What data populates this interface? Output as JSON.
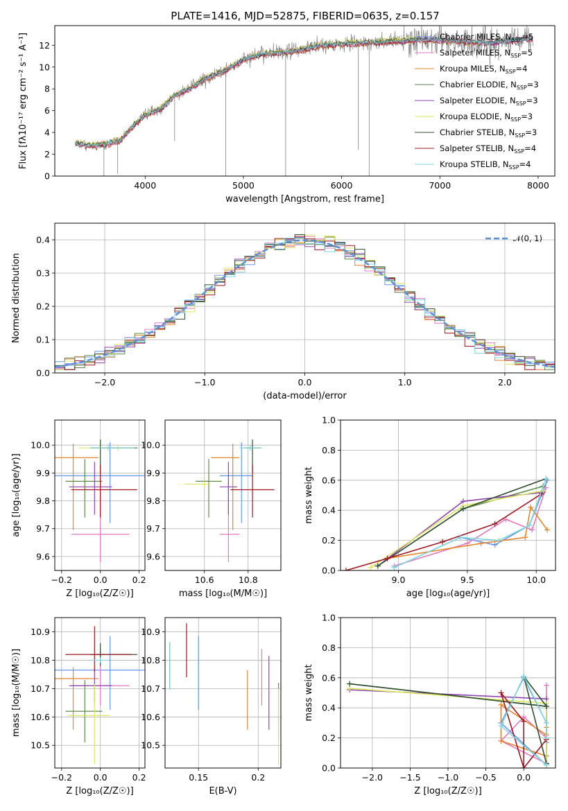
{
  "figure": {
    "title": "PLATE=1416, MJD=52875, FIBERID=0635, z=0.157"
  },
  "chart_data": [
    {
      "id": "spectrum",
      "type": "line",
      "xlabel": "wavelength [Angstrom, rest frame]",
      "ylabel": "Flux [fλ10⁻¹⁷ erg cm⁻² s⁻¹ A⁻¹]",
      "xlim": [
        3080,
        8170
      ],
      "ylim": [
        0,
        13.8
      ],
      "xticks": [
        4000,
        5000,
        6000,
        7000,
        8000
      ],
      "yticks": [
        0,
        2,
        4,
        6,
        8,
        10,
        12
      ],
      "grid": false,
      "legend_position": "top-right",
      "data_color": "#808080",
      "observed_envelope": {
        "x": [
          3300,
          3450,
          3600,
          3750,
          3900,
          4000,
          4150,
          4300,
          4450,
          4600,
          4800,
          5000,
          5200,
          5400,
          5600,
          5800,
          6000,
          6200,
          6400,
          6600,
          6750,
          7000,
          7300,
          7500,
          7700,
          7900
        ],
        "y": [
          3.0,
          2.8,
          2.9,
          3.3,
          4.8,
          5.6,
          6.1,
          7.4,
          8.0,
          8.9,
          9.6,
          10.7,
          11.2,
          11.3,
          11.6,
          12.0,
          12.1,
          12.2,
          12.3,
          12.4,
          12.5,
          12.5,
          12.3,
          12.2,
          12.4,
          12.6
        ]
      },
      "absorption_lines": [
        {
          "x": 3580,
          "depth": 0
        },
        {
          "x": 3720,
          "depth": 0.2
        },
        {
          "x": 4300,
          "depth": 3.2
        },
        {
          "x": 4820,
          "depth": 0
        },
        {
          "x": 5430,
          "depth": 0
        },
        {
          "x": 6170,
          "depth": 2.4
        },
        {
          "x": 6280,
          "depth": 0
        }
      ],
      "series": [
        {
          "name": "Chabrier MILES, N_SSP=5",
          "label": "Chabrier MILES, N",
          "sub": "SSP",
          "suffix": "=5",
          "color": "#6495ed",
          "offset": 0.0
        },
        {
          "name": "Salpeter MILES, N_SSP=5",
          "label": "Salpeter MILES, N",
          "sub": "SSP",
          "suffix": "=5",
          "color": "#e377c2",
          "offset": 0.15
        },
        {
          "name": "Kroupa MILES, N_SSP=4",
          "label": "Kroupa MILES, N",
          "sub": "SSP",
          "suffix": "=4",
          "color": "#e6842a",
          "offset": -0.1
        },
        {
          "name": "Chabrier ELODIE, N_SSP=3",
          "label": "Chabrier ELODIE, N",
          "sub": "SSP",
          "suffix": "=3",
          "color": "#5a8a48",
          "offset": 0.05
        },
        {
          "name": "Salpeter ELODIE, N_SSP=3",
          "label": "Salpeter ELODIE, N",
          "sub": "SSP",
          "suffix": "=3",
          "color": "#8e44ad",
          "offset": -0.05
        },
        {
          "name": "Kroupa ELODIE, N_SSP=3",
          "label": "Kroupa ELODIE, N",
          "sub": "SSP",
          "suffix": "=3",
          "color": "#dbe75b",
          "offset": 0.2
        },
        {
          "name": "Chabrier STELIB, N_SSP=3",
          "label": "Chabrier STELIB, N",
          "sub": "SSP",
          "suffix": "=3",
          "color": "#2f4f2f",
          "offset": 0.1
        },
        {
          "name": "Salpeter STELIB, N_SSP=4",
          "label": "Salpeter STELIB, N",
          "sub": "SSP",
          "suffix": "=4",
          "color": "#a0141e",
          "offset": -0.15
        },
        {
          "name": "Kroupa STELIB, N_SSP=4",
          "label": "Kroupa STELIB, N",
          "sub": "SSP",
          "suffix": "=4",
          "color": "#7fd7e0",
          "offset": 0.0
        }
      ]
    },
    {
      "id": "residuals",
      "type": "line",
      "xlabel": "(data-model)/error",
      "ylabel": "Normed distribution",
      "xlim": [
        -2.5,
        2.5
      ],
      "ylim": [
        0,
        0.45
      ],
      "xticks": [
        -2,
        -1,
        0,
        1,
        2
      ],
      "yticks": [
        0.0,
        0.1,
        0.2,
        0.3,
        0.4
      ],
      "grid": true,
      "legend_position": "top-right",
      "legend_label": "𝒩(0, 1)",
      "normal_curve_color": "#5b8fd9",
      "bin_width": 0.1
    },
    {
      "id": "age-vs-Z",
      "type": "scatter",
      "xlabel": "Z [log₁₀(Z/Z☉)]",
      "ylabel": "age  [log₁₀(age/yr)]",
      "xlim": [
        -0.235,
        0.23
      ],
      "ylim": [
        9.55,
        10.09
      ],
      "xticks": [
        -0.2,
        0.0,
        0.2
      ],
      "yticks": [
        9.6,
        9.7,
        9.8,
        9.9,
        10.0
      ],
      "grid": true,
      "points": [
        {
          "x": 0.05,
          "y": 9.89,
          "xerr": [
            0.32,
            0.24
          ],
          "yerr": [
            0.17,
            0.12
          ],
          "color": "#6495ed"
        },
        {
          "x": 0.0,
          "y": 9.68,
          "xerr": [
            0.15,
            0.15
          ],
          "yerr": [
            0.1,
            0.2
          ],
          "color": "#e377c2"
        },
        {
          "x": -0.14,
          "y": 9.955,
          "xerr": [
            0.23,
            0.13
          ],
          "yerr": [
            0.26,
            0.05
          ],
          "color": "#e6842a"
        },
        {
          "x": -0.08,
          "y": 9.87,
          "xerr": [
            0.1,
            0.09
          ],
          "yerr": [
            0.13,
            0.08
          ],
          "color": "#5a8a48"
        },
        {
          "x": -0.03,
          "y": 9.85,
          "xerr": [
            0.13,
            0.09
          ],
          "yerr": [
            0.1,
            0.09
          ],
          "color": "#8e44ad"
        },
        {
          "x": 0.09,
          "y": 9.99,
          "xerr": [
            0.2,
            0.01
          ],
          "yerr": [
            0.01,
            0.01
          ],
          "color": "#dbe75b"
        },
        {
          "x": 0.0,
          "y": 9.99,
          "xerr": [
            0.05,
            0.19
          ],
          "yerr": [
            0.09,
            0.03
          ],
          "color": "#2f4f2f"
        },
        {
          "x": 0.0,
          "y": 9.84,
          "xerr": [
            0.15,
            0.19
          ],
          "yerr": [
            0.1,
            0.09
          ],
          "color": "#a0141e"
        },
        {
          "x": 0.04,
          "y": 9.99,
          "xerr": [
            0.09,
            0.14
          ],
          "yerr": [
            0.01,
            0.01
          ],
          "color": "#7fd7e0"
        }
      ]
    },
    {
      "id": "age-vs-mass",
      "type": "scatter",
      "xlabel": "mass [log₁₀(M/M☉)]",
      "ylabel": "",
      "xlim": [
        10.42,
        10.95
      ],
      "ylim": [
        9.55,
        10.09
      ],
      "xticks": [
        10.6,
        10.8
      ],
      "yticks": [
        9.6,
        9.7,
        9.8,
        9.9,
        10.0
      ],
      "grid": true,
      "points": [
        {
          "x": 10.77,
          "y": 9.89,
          "xerr": [
            0.1,
            0.05
          ],
          "yerr": [
            0.17,
            0.12
          ],
          "color": "#6495ed"
        },
        {
          "x": 10.71,
          "y": 9.68,
          "xerr": [
            0.04,
            0.05
          ],
          "yerr": [
            0.1,
            0.2
          ],
          "color": "#e377c2"
        },
        {
          "x": 10.73,
          "y": 9.955,
          "xerr": [
            0.1,
            0.03
          ],
          "yerr": [
            0.26,
            0.05
          ],
          "color": "#e6842a"
        },
        {
          "x": 10.62,
          "y": 9.87,
          "xerr": [
            0.06,
            0.06
          ],
          "yerr": [
            0.13,
            0.08
          ],
          "color": "#5a8a48"
        },
        {
          "x": 10.71,
          "y": 9.85,
          "xerr": [
            0.04,
            0.04
          ],
          "yerr": [
            0.1,
            0.09
          ],
          "color": "#8e44ad"
        },
        {
          "x": 10.6,
          "y": 9.86,
          "xerr": [
            0.09,
            0.02
          ],
          "yerr": [
            0.01,
            0.01
          ],
          "color": "#dbe75b"
        },
        {
          "x": 10.82,
          "y": 9.99,
          "xerr": [
            0.04,
            0.04
          ],
          "yerr": [
            0.09,
            0.03
          ],
          "color": "#2f4f2f"
        },
        {
          "x": 10.82,
          "y": 9.84,
          "xerr": [
            0.1,
            0.1
          ],
          "yerr": [
            0.1,
            0.09
          ],
          "color": "#a0141e"
        },
        {
          "x": 10.81,
          "y": 9.99,
          "xerr": [
            0.05,
            0.05
          ],
          "yerr": [
            0.01,
            0.01
          ],
          "color": "#7fd7e0"
        }
      ]
    },
    {
      "id": "weight-vs-age",
      "type": "line",
      "xlabel": "age  [log₁₀(age/yr)]",
      "ylabel": "mass weight",
      "xlim": [
        8.58,
        10.14
      ],
      "ylim": [
        0,
        1.0
      ],
      "xticks": [
        9.0,
        9.5,
        10.0
      ],
      "yticks": [
        0.0,
        0.2,
        0.4,
        0.6,
        0.8,
        1.0
      ],
      "grid": true,
      "series": [
        {
          "color": "#6495ed",
          "x": [
            8.97,
            9.45,
            9.7,
            9.95,
            10.08
          ],
          "y": [
            0.02,
            0.22,
            0.17,
            0.3,
            0.6
          ]
        },
        {
          "color": "#e377c2",
          "x": [
            8.97,
            9.5,
            9.78,
            9.97,
            10.07
          ],
          "y": [
            0.03,
            0.18,
            0.34,
            0.27,
            0.55
          ]
        },
        {
          "color": "#e6842a",
          "x": [
            8.92,
            9.6,
            9.92,
            9.96,
            10.08
          ],
          "y": [
            0.08,
            0.18,
            0.22,
            0.42,
            0.27
          ]
        },
        {
          "color": "#5a8a48",
          "x": [
            8.85,
            9.47,
            10.05
          ],
          "y": [
            0.03,
            0.41,
            0.56
          ]
        },
        {
          "color": "#8e44ad",
          "x": [
            8.85,
            9.47,
            10.05
          ],
          "y": [
            0.03,
            0.46,
            0.52
          ]
        },
        {
          "color": "#dbe75b",
          "x": [
            8.8,
            9.47,
            10.05
          ],
          "y": [
            0.02,
            0.43,
            0.53
          ]
        },
        {
          "color": "#2f4f2f",
          "x": [
            8.85,
            9.47,
            10.07
          ],
          "y": [
            0.03,
            0.41,
            0.61
          ]
        },
        {
          "color": "#a0141e",
          "x": [
            8.62,
            8.92,
            9.32,
            9.7,
            10.04
          ],
          "y": [
            0.0,
            0.08,
            0.19,
            0.31,
            0.51
          ]
        },
        {
          "color": "#7fd7e0",
          "x": [
            8.97,
            9.45,
            9.73,
            9.95,
            10.07
          ],
          "y": [
            0.02,
            0.22,
            0.2,
            0.3,
            0.61
          ]
        }
      ]
    },
    {
      "id": "mass-vs-Z",
      "type": "scatter",
      "xlabel": "Z [log₁₀(Z/Z☉)]",
      "ylabel": "mass [log₁₀(M/M☉)]",
      "xlim": [
        -0.235,
        0.23
      ],
      "ylim": [
        10.42,
        10.95
      ],
      "xticks": [
        -0.2,
        0.0,
        0.2
      ],
      "yticks": [
        10.5,
        10.6,
        10.7,
        10.8,
        10.9
      ],
      "grid": true,
      "points": [
        {
          "x": 0.05,
          "y": 10.765,
          "xerr": [
            0.32,
            0.24
          ],
          "yerr": [
            0.14,
            0.12
          ],
          "color": "#6495ed"
        },
        {
          "x": 0.0,
          "y": 10.71,
          "xerr": [
            0.15,
            0.15
          ],
          "yerr": [
            0.07,
            0.13
          ],
          "color": "#e377c2"
        },
        {
          "x": -0.14,
          "y": 10.735,
          "xerr": [
            0.23,
            0.13
          ],
          "yerr": [
            0.18,
            0.04
          ],
          "color": "#e6842a"
        },
        {
          "x": -0.08,
          "y": 10.62,
          "xerr": [
            0.1,
            0.09
          ],
          "yerr": [
            0.11,
            0.11
          ],
          "color": "#5a8a48"
        },
        {
          "x": -0.03,
          "y": 10.71,
          "xerr": [
            0.13,
            0.09
          ],
          "yerr": [
            0.06,
            0.06
          ],
          "color": "#8e44ad"
        },
        {
          "x": -0.03,
          "y": 10.605,
          "xerr": [
            0.14,
            0.08
          ],
          "yerr": [
            0.17,
            0.11
          ],
          "color": "#dbe75b"
        },
        {
          "x": 0.0,
          "y": 10.82,
          "xerr": [
            0.05,
            0.19
          ],
          "yerr": [
            0.04,
            0.04
          ],
          "color": "#2f4f2f"
        },
        {
          "x": -0.03,
          "y": 10.82,
          "xerr": [
            0.15,
            0.19
          ],
          "yerr": [
            0.06,
            0.1
          ],
          "color": "#a0141e"
        },
        {
          "x": 0.0,
          "y": 10.8,
          "xerr": [
            0.04,
            0.04
          ],
          "yerr": [
            0.01,
            0.01
          ],
          "color": "#7fd7e0"
        }
      ]
    },
    {
      "id": "mass-vs-EBV",
      "type": "scatter",
      "xlabel": "E(B-V)",
      "ylabel": "",
      "xlim": [
        0.122,
        0.219
      ],
      "ylim": [
        10.42,
        10.95
      ],
      "xticks": [
        0.15,
        0.2
      ],
      "yticks": [
        10.5,
        10.6,
        10.7,
        10.8,
        10.9
      ],
      "grid": true,
      "points": [
        {
          "x": 0.15,
          "y": 10.765,
          "xerr": [
            0,
            0
          ],
          "yerr": [
            0.14,
            0.12
          ],
          "color": "#6495ed"
        },
        {
          "x": 0.203,
          "y": 10.71,
          "xerr": [
            0,
            0
          ],
          "yerr": [
            0.07,
            0.13
          ],
          "color": "#e377c2"
        },
        {
          "x": 0.191,
          "y": 10.665,
          "xerr": [
            0,
            0
          ],
          "yerr": [
            0.11,
            0.1
          ],
          "color": "#e6842a"
        },
        {
          "x": 0.217,
          "y": 10.58,
          "xerr": [
            0,
            0
          ],
          "yerr": [
            0.06,
            0.14
          ],
          "color": "#5a8a48"
        },
        {
          "x": 0.209,
          "y": 10.685,
          "xerr": [
            0,
            0
          ],
          "yerr": [
            0.13,
            0.13
          ],
          "color": "#8e44ad"
        },
        {
          "x": 0.217,
          "y": 10.57,
          "xerr": [
            0,
            0
          ],
          "yerr": [
            0.14,
            0.13
          ],
          "color": "#dbe75b"
        },
        {
          "x": 0.126,
          "y": 10.78,
          "xerr": [
            0,
            0
          ],
          "yerr": [
            0.08,
            0.08
          ],
          "color": "#2f4f2f"
        },
        {
          "x": 0.14,
          "y": 10.83,
          "xerr": [
            0,
            0
          ],
          "yerr": [
            0.09,
            0.1
          ],
          "color": "#a0141e"
        },
        {
          "x": 0.126,
          "y": 10.775,
          "xerr": [
            0,
            0
          ],
          "yerr": [
            0.08,
            0.09
          ],
          "color": "#7fd7e0"
        }
      ]
    },
    {
      "id": "weight-vs-Z",
      "type": "line",
      "xlabel": "Z [log₁₀(Z/Z☉)]",
      "ylabel": "mass weight",
      "xlim": [
        -2.42,
        0.42
      ],
      "ylim": [
        0,
        1.0
      ],
      "xticks": [
        -2.0,
        -1.5,
        -1.0,
        -0.5,
        0.0
      ],
      "yticks": [
        0.0,
        0.2,
        0.4,
        0.6,
        0.8,
        1.0
      ],
      "grid": true,
      "series": [
        {
          "color": "#6495ed",
          "x": [
            0.3,
            -0.3,
            0.0,
            0.3,
            0.3
          ],
          "y": [
            0.02,
            0.3,
            0.6,
            0.3,
            0.17
          ]
        },
        {
          "color": "#e377c2",
          "x": [
            0.3,
            -0.3,
            0.0,
            0.3,
            0.3
          ],
          "y": [
            0.03,
            0.18,
            0.34,
            0.2,
            0.55
          ]
        },
        {
          "color": "#e6842a",
          "x": [
            0.3,
            -0.3,
            -0.3,
            0.3,
            0.3
          ],
          "y": [
            0.08,
            0.18,
            0.42,
            0.22,
            0.27
          ]
        },
        {
          "color": "#5a8a48",
          "x": [
            -2.3,
            0.3,
            0.3
          ],
          "y": [
            0.56,
            0.41,
            0.03
          ]
        },
        {
          "color": "#8e44ad",
          "x": [
            -2.3,
            0.3,
            0.3
          ],
          "y": [
            0.52,
            0.46,
            0.03
          ]
        },
        {
          "color": "#dbe75b",
          "x": [
            -2.3,
            0.3,
            0.3
          ],
          "y": [
            0.53,
            0.43,
            0.02
          ]
        },
        {
          "color": "#2f4f2f",
          "x": [
            -2.3,
            0.3,
            0.0,
            0.3
          ],
          "y": [
            0.56,
            0.41,
            0.61,
            0.03
          ]
        },
        {
          "color": "#a0141e",
          "x": [
            0.0,
            -0.3,
            0.0,
            0.0,
            0.3
          ],
          "y": [
            0.0,
            0.5,
            0.31,
            0.0,
            0.19
          ]
        },
        {
          "color": "#7fd7e0",
          "x": [
            0.3,
            -0.3,
            0.0,
            0.3,
            0.3
          ],
          "y": [
            0.02,
            0.28,
            0.61,
            0.3,
            0.2
          ]
        }
      ]
    }
  ]
}
